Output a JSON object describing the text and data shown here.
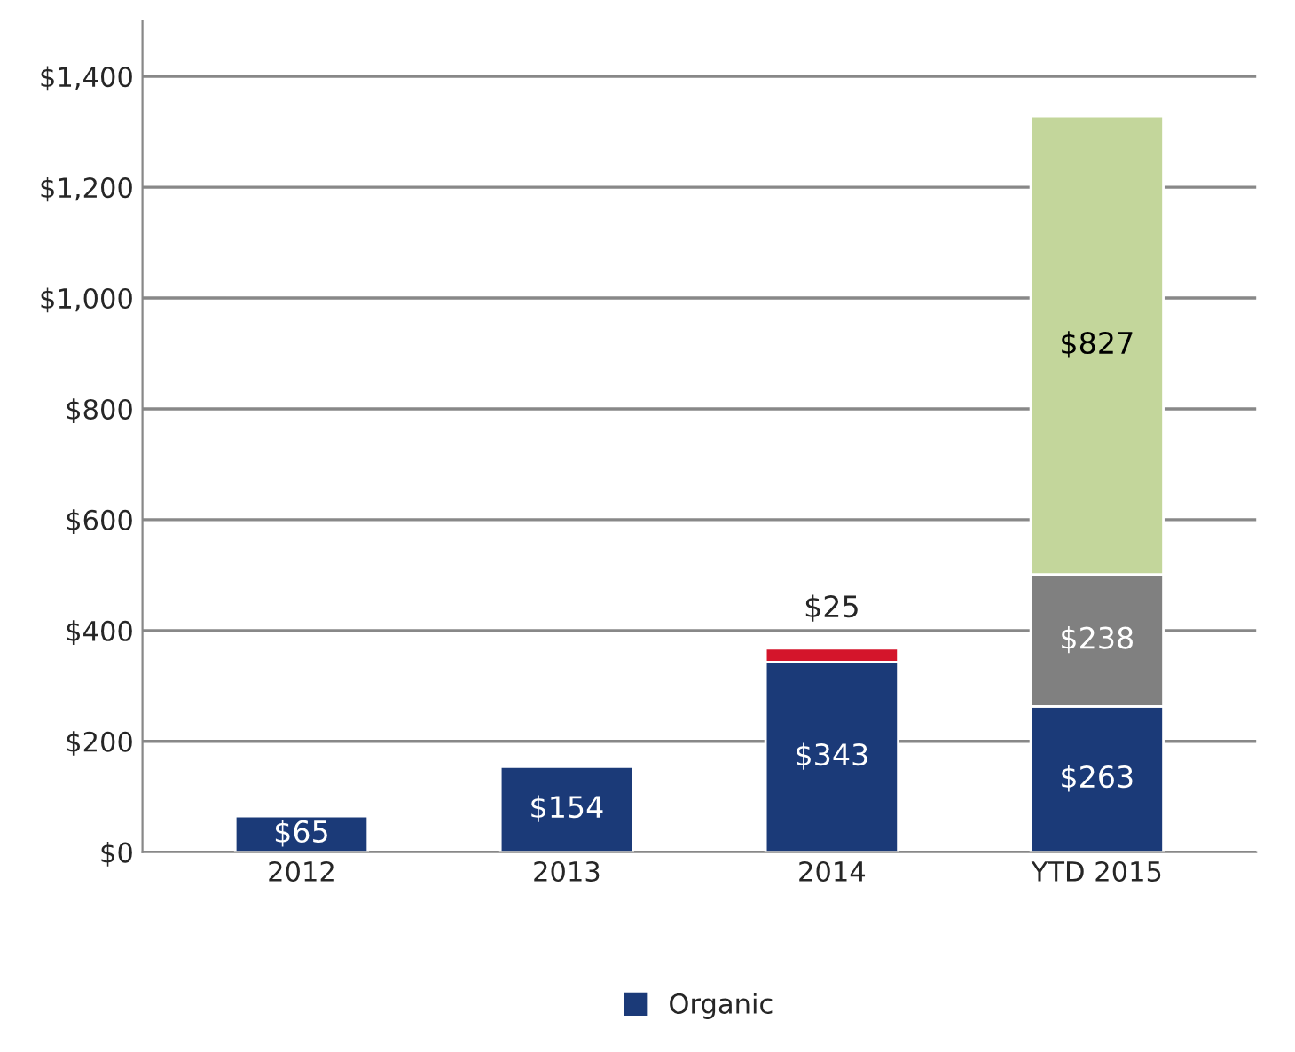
{
  "chart_data": {
    "type": "bar",
    "stacked": true,
    "categories": [
      "2012",
      "2013",
      "2014",
      "YTD 2015"
    ],
    "series": [
      {
        "name": "Organic",
        "color": "#1b3a78",
        "values": [
          65,
          154,
          343,
          263
        ],
        "value_labels": [
          "$65",
          "$154",
          "$343",
          "$263"
        ]
      },
      {
        "color": "#d4152b",
        "values": [
          null,
          null,
          25,
          null
        ],
        "value_labels": [
          null,
          null,
          "$25",
          null
        ]
      },
      {
        "color": "#808080",
        "values": [
          null,
          null,
          null,
          238
        ],
        "value_labels": [
          null,
          null,
          null,
          "$238"
        ]
      },
      {
        "color": "#c3d69b",
        "values": [
          null,
          null,
          null,
          827
        ],
        "value_labels": [
          null,
          null,
          null,
          "$827"
        ]
      }
    ],
    "ylim": [
      0,
      1500
    ],
    "yticks": [
      {
        "value": 0,
        "label": "$0"
      },
      {
        "value": 200,
        "label": "$200"
      },
      {
        "value": 400,
        "label": "$400"
      },
      {
        "value": 600,
        "label": "$600"
      },
      {
        "value": 800,
        "label": "$800"
      },
      {
        "value": 1000,
        "label": "$1,000"
      },
      {
        "value": 1200,
        "label": "$1,200"
      },
      {
        "value": 1400,
        "label": "$1,400"
      }
    ],
    "grid": "y",
    "legend": "bottom"
  }
}
